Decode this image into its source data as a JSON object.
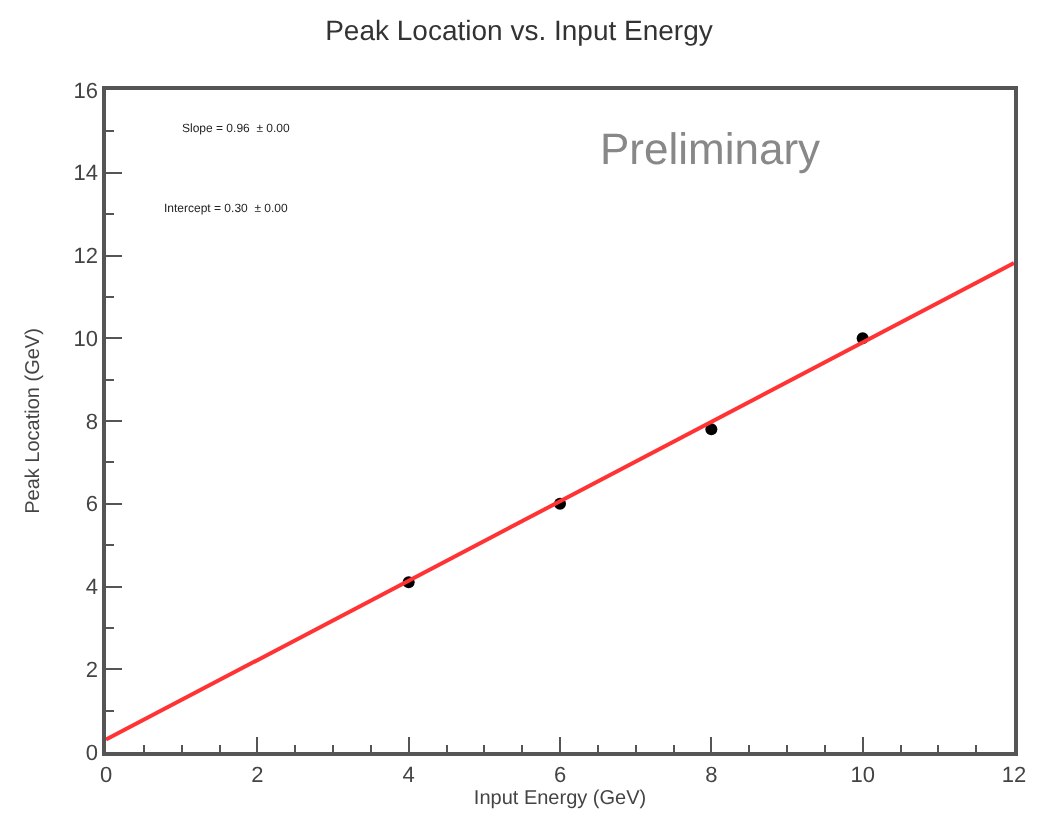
{
  "chart_data": {
    "type": "scatter",
    "title": "Peak Location vs. Input Energy",
    "xlabel": "Input Energy (GeV)",
    "ylabel": "Peak Location (GeV)",
    "series": [
      {
        "color": "#000000",
        "marker": "circle",
        "x": [
          4,
          6,
          8,
          10
        ],
        "values": [
          4.1,
          6.0,
          7.8,
          10.0
        ]
      },
      {
        "type": "line",
        "color": "#ff3333",
        "line_style": "solid",
        "x": [
          0,
          12
        ],
        "values": [
          0.3,
          11.82
        ]
      }
    ],
    "xlim": [
      0,
      12
    ],
    "xticks": [
      0,
      2,
      4,
      6,
      8,
      10,
      12
    ],
    "ylim": [
      0,
      16
    ],
    "yticks": [
      0,
      2,
      4,
      6,
      8,
      10,
      12,
      14,
      16
    ],
    "grid": false,
    "legend": false,
    "annotations": [
      "Slope = 0.96  ± 0.00",
      "Intercept = 0.30  ± 0.00",
      "Preliminary"
    ]
  }
}
